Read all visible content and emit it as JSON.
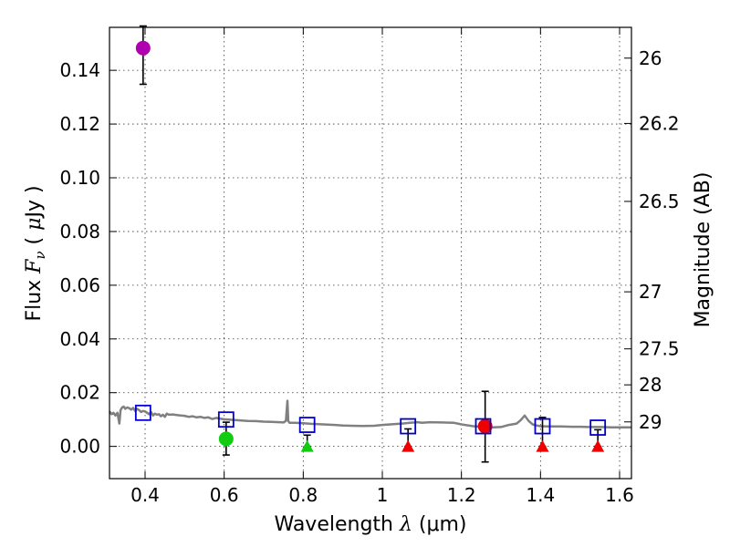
{
  "chart_data": {
    "type": "scatter",
    "xlabel": "Wavelength  λ (μm)",
    "ylabel": "Flux  F_ν  ( μJy )",
    "ylabel_parts": {
      "prefix": "Flux  ",
      "symbol": "F",
      "sub": "ν",
      "unit_open": "  ( ",
      "mu": "μ",
      "unit": "Jy )"
    },
    "xlabel_parts": {
      "prefix": "Wavelength  ",
      "symbol": "λ",
      "unit": " (μm)"
    },
    "y2label": "Magnitude (AB)",
    "xlim": [
      0.31,
      1.63
    ],
    "ylim": [
      -0.012,
      0.156
    ],
    "xticks": [
      0.4,
      0.6,
      0.8,
      1.0,
      1.2,
      1.4,
      1.6
    ],
    "xtick_labels": [
      "0.4",
      "0.6",
      "0.8",
      "1",
      "1.2",
      "1.4",
      "1.6"
    ],
    "yticks": [
      0.0,
      0.02,
      0.04,
      0.06,
      0.08,
      0.1,
      0.12,
      0.14
    ],
    "ytick_labels": [
      "0.00",
      "0.02",
      "0.04",
      "0.06",
      "0.08",
      "0.10",
      "0.12",
      "0.14"
    ],
    "y2ticks": [
      {
        "label": "26",
        "mag": 26.0
      },
      {
        "label": "26.2",
        "mag": 26.2
      },
      {
        "label": "26.5",
        "mag": 26.5
      },
      {
        "label": "27",
        "mag": 27.0
      },
      {
        "label": "27.5",
        "mag": 27.5
      },
      {
        "label": "28",
        "mag": 28.0
      },
      {
        "label": "29",
        "mag": 29.0
      }
    ],
    "grid": true,
    "model_spectrum": {
      "name": "model SED",
      "color": "#808080",
      "x": [
        0.31,
        0.315,
        0.32,
        0.325,
        0.33,
        0.335,
        0.338,
        0.342,
        0.346,
        0.35,
        0.355,
        0.36,
        0.365,
        0.37,
        0.375,
        0.38,
        0.385,
        0.39,
        0.395,
        0.4,
        0.405,
        0.41,
        0.415,
        0.42,
        0.425,
        0.43,
        0.435,
        0.44,
        0.445,
        0.45,
        0.455,
        0.46,
        0.47,
        0.48,
        0.49,
        0.5,
        0.51,
        0.52,
        0.53,
        0.54,
        0.55,
        0.56,
        0.57,
        0.58,
        0.59,
        0.6,
        0.62,
        0.64,
        0.66,
        0.68,
        0.7,
        0.72,
        0.74,
        0.75,
        0.756,
        0.76,
        0.762,
        0.765,
        0.77,
        0.78,
        0.8,
        0.82,
        0.85,
        0.88,
        0.9,
        0.92,
        0.95,
        0.98,
        1.0,
        1.02,
        1.05,
        1.07,
        1.09,
        1.1,
        1.12,
        1.15,
        1.18,
        1.2,
        1.23,
        1.26,
        1.28,
        1.3,
        1.32,
        1.34,
        1.35,
        1.36,
        1.37,
        1.38,
        1.39,
        1.4,
        1.42,
        1.45,
        1.48,
        1.5,
        1.52,
        1.55,
        1.58,
        1.6,
        1.63
      ],
      "y": [
        0.013,
        0.012,
        0.0125,
        0.0115,
        0.0125,
        0.0085,
        0.0135,
        0.0145,
        0.0148,
        0.014,
        0.0145,
        0.0142,
        0.0137,
        0.0143,
        0.0132,
        0.014,
        0.0135,
        0.0128,
        0.0132,
        0.013,
        0.0125,
        0.012,
        0.0128,
        0.0115,
        0.0122,
        0.0118,
        0.012,
        0.0112,
        0.0118,
        0.011,
        0.0122,
        0.0118,
        0.0119,
        0.0117,
        0.0115,
        0.0114,
        0.011,
        0.0112,
        0.0108,
        0.011,
        0.0106,
        0.0108,
        0.0102,
        0.0106,
        0.0103,
        0.0101,
        0.0099,
        0.0097,
        0.0095,
        0.0094,
        0.0092,
        0.0091,
        0.009,
        0.0089,
        0.0095,
        0.017,
        0.0095,
        0.0088,
        0.0088,
        0.0088,
        0.0086,
        0.0084,
        0.0082,
        0.008,
        0.0078,
        0.0077,
        0.0076,
        0.0077,
        0.008,
        0.0082,
        0.0085,
        0.0088,
        0.009,
        0.0088,
        0.009,
        0.0089,
        0.0088,
        0.0082,
        0.0075,
        0.0072,
        0.0071,
        0.0072,
        0.008,
        0.0085,
        0.0098,
        0.0115,
        0.0095,
        0.0082,
        0.0078,
        0.0075,
        0.0074,
        0.0074,
        0.0073,
        0.0073,
        0.0072,
        0.0072,
        0.0071,
        0.0071,
        0.0071
      ]
    },
    "model_photometry": {
      "name": "model photometry",
      "color": "#0000cc",
      "marker": "square",
      "x": [
        0.395,
        0.605,
        0.81,
        1.065,
        1.255,
        1.405,
        1.545
      ],
      "y": [
        0.0125,
        0.01,
        0.008,
        0.0075,
        0.0075,
        0.0075,
        0.007
      ]
    },
    "detections": [
      {
        "x": 0.395,
        "y": 0.1483,
        "err_low": 0.1348,
        "err_high": 0.1565,
        "color": "#b000b0"
      },
      {
        "x": 0.605,
        "y": 0.0028,
        "err_low": -0.0032,
        "err_high": 0.009,
        "color": "#11cc11"
      },
      {
        "x": 1.26,
        "y": 0.0075,
        "err_low": -0.0058,
        "err_high": 0.0205,
        "color": "#ee0000"
      }
    ],
    "upper_limits": [
      {
        "x": 0.81,
        "y": 0.0,
        "err_top": 0.0042,
        "color": "#11cc11"
      },
      {
        "x": 1.065,
        "y": 0.0,
        "err_top": 0.0065,
        "color": "#ee0000"
      },
      {
        "x": 1.405,
        "y": 0.0,
        "err_top": 0.0108,
        "color": "#ee0000"
      },
      {
        "x": 1.545,
        "y": 0.0,
        "err_top": 0.0062,
        "color": "#ee0000"
      }
    ]
  }
}
